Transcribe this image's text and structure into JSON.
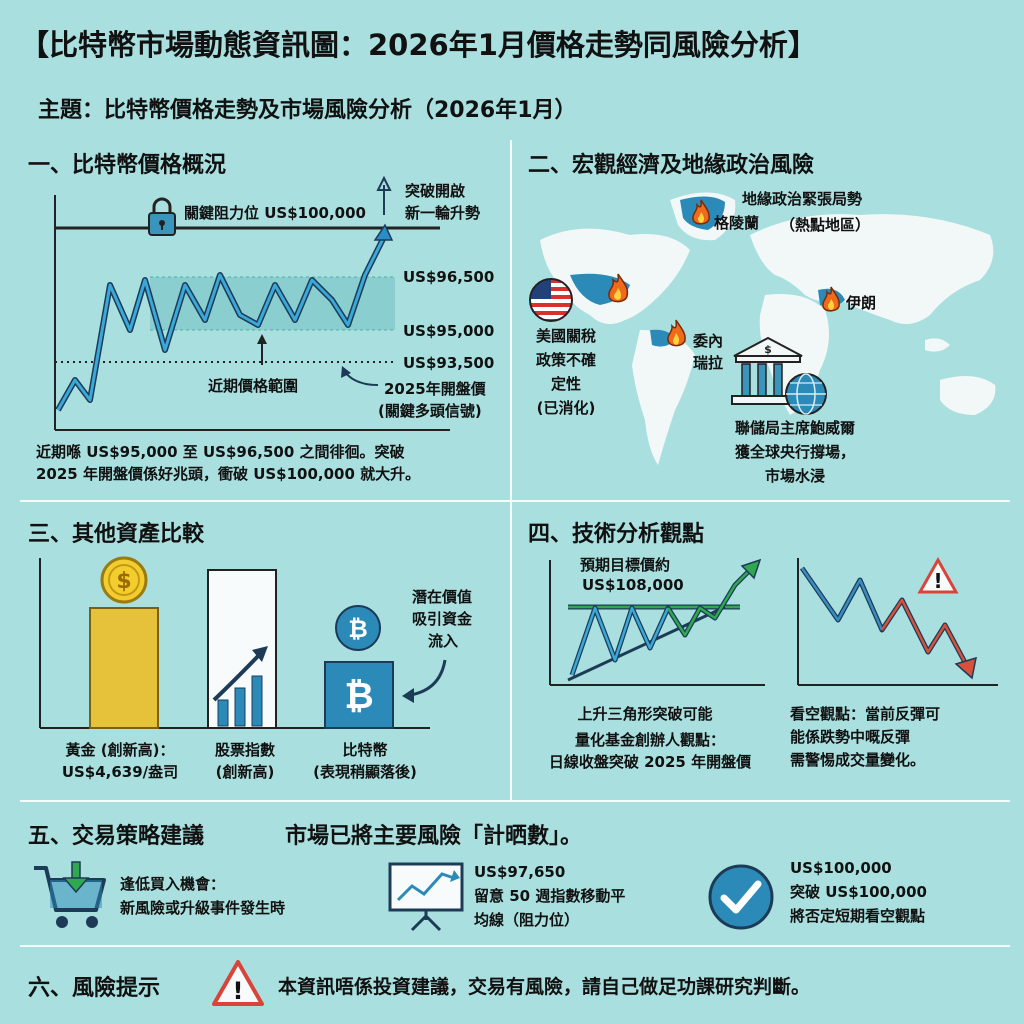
{
  "title": "【比特幣市場動態資訊圖：2026年1月價格走勢同風險分析】",
  "subtitle": "主題：比特幣價格走勢及市場風險分析（2026年1月）",
  "section1": {
    "heading": "一、比特幣價格概況",
    "resistance_label": "關鍵阻力位 US$100,000",
    "breakout_label_1": "突破開啟",
    "breakout_label_2": "新一輪升勢",
    "level_high": "US$96,500",
    "level_low": "US$95,000",
    "level_open": "US$93,500",
    "range_label": "近期價格範圍",
    "open_label_1": "2025年開盤價",
    "open_label_2": "(關鍵多頭信號)",
    "summary_1": "近期喺 US$95,000 至 US$96,500 之間徘徊。突破",
    "summary_2": "2025 年開盤價係好兆頭，衝破 US$100,000 就大升。"
  },
  "section2": {
    "heading": "二、宏觀經濟及地緣政治風險",
    "hotspot_title_1": "地緣政治緊張局勢",
    "hotspot_title_2": "（熱點地區）",
    "greenland": "格陵蘭",
    "iran": "伊朗",
    "venezuela_1": "委內",
    "venezuela_2": "瑞拉",
    "us_tariff_1": "美國關稅",
    "us_tariff_2": "政策不確",
    "us_tariff_3": "定性",
    "us_tariff_4": "(已消化)",
    "fed_1": "聯儲局主席鮑威爾",
    "fed_2": "獲全球央行撐場，",
    "fed_3": "市場水浸"
  },
  "section3": {
    "heading": "三、其他資產比較",
    "gold_1": "黃金 (創新高)：",
    "gold_2": "US$4,639/盎司",
    "stocks_1": "股票指數",
    "stocks_2": "(創新高)",
    "btc_1": "比特幣",
    "btc_2": "(表現稍顯落後)",
    "flow_1": "潛在價值",
    "flow_2": "吸引資金",
    "flow_3": "流入"
  },
  "section4": {
    "heading": "四、技術分析觀點",
    "target_1": "預期目標價約",
    "target_2": "US$108,000",
    "triangle_label": "上升三角形突破可能",
    "quant_1": "量化基金創辦人觀點：",
    "quant_2": "日線收盤突破 2025 年開盤價",
    "bear_1": "看空觀點：當前反彈可",
    "bear_2": "能係跌勢中嘅反彈",
    "bear_3": "需警惕成交量變化。"
  },
  "section5": {
    "heading": "五、交易策略建議",
    "heading_note": "市場已將主要風險「計晒數」。",
    "buy_1": "逢低買入機會：",
    "buy_2": "新風險或升級事件發生時",
    "ma_1": "US$97,650",
    "ma_2": "留意 50 週指數移動平",
    "ma_3": "均線（阻力位）",
    "break_1": "US$100,000",
    "break_2": "突破 US$100,000",
    "break_3": "將否定短期看空觀點"
  },
  "section6": {
    "heading": "六、風險提示",
    "text": "本資訊唔係投資建議，交易有風險，請自己做足功課研究判斷。"
  },
  "colors": {
    "background": "#a9e0df",
    "line_blue": "#2a8cc8",
    "arrow_green": "#2fa84f",
    "alert_red": "#e0442e",
    "gold": "#e6c23a",
    "fire": "#f06a1d"
  }
}
